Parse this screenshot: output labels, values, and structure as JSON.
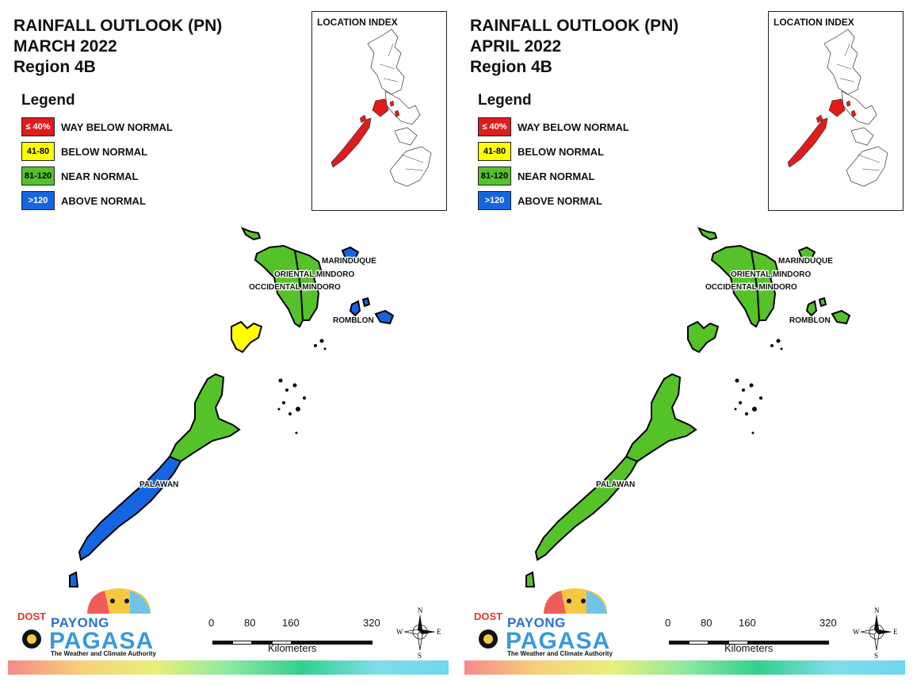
{
  "panels": [
    {
      "title_line1": "RAINFALL OUTLOOK (PN)",
      "title_line2": "MARCH 2022",
      "title_line3": "Region 4B",
      "map_category": {
        "palawan_south": "above",
        "palawan_north": "near",
        "calamian": "below",
        "mindoro": "near",
        "marinduque": "above",
        "romblon": "above"
      }
    },
    {
      "title_line1": "RAINFALL OUTLOOK (PN)",
      "title_line2": "APRIL 2022",
      "title_line3": "Region 4B",
      "map_category": {
        "palawan_south": "near",
        "palawan_north": "near",
        "calamian": "near",
        "mindoro": "near",
        "marinduque": "near",
        "romblon": "near"
      }
    }
  ],
  "legend": {
    "title": "Legend",
    "items": [
      {
        "swatch": "≤ 40%",
        "label": "WAY BELOW NORMAL",
        "color": "#e01b1b",
        "text_color": "#ffffff"
      },
      {
        "swatch": "41-80",
        "label": "BELOW NORMAL",
        "color": "#ffff00",
        "text_color": "#000000"
      },
      {
        "swatch": "81-120",
        "label": "NEAR NORMAL",
        "color": "#55c22a",
        "text_color": "#000000"
      },
      {
        "swatch": ">120",
        "label": "ABOVE NORMAL",
        "color": "#1565e0",
        "text_color": "#ffffff"
      }
    ]
  },
  "location_index": {
    "title": "LOCATION INDEX",
    "highlight_color": "#e01b1b"
  },
  "places": {
    "marinduque": "MARINDUQUE",
    "oriental_mindoro": "ORIENTAL MINDORO",
    "occidental_mindoro": "OCCIDENTAL MINDORO",
    "romblon": "ROMBLON",
    "palawan": "PALAWAN"
  },
  "logo": {
    "dost": "DOST",
    "payong": "PAYONG",
    "pagasa": "PAGASA",
    "tagline": "The Weather and Climate Authority"
  },
  "scale": {
    "ticks": [
      "0",
      "80",
      "160",
      "320"
    ],
    "units": "Kilometers"
  },
  "compass": {
    "n": "N",
    "s": "S",
    "e": "E",
    "w": "W"
  }
}
